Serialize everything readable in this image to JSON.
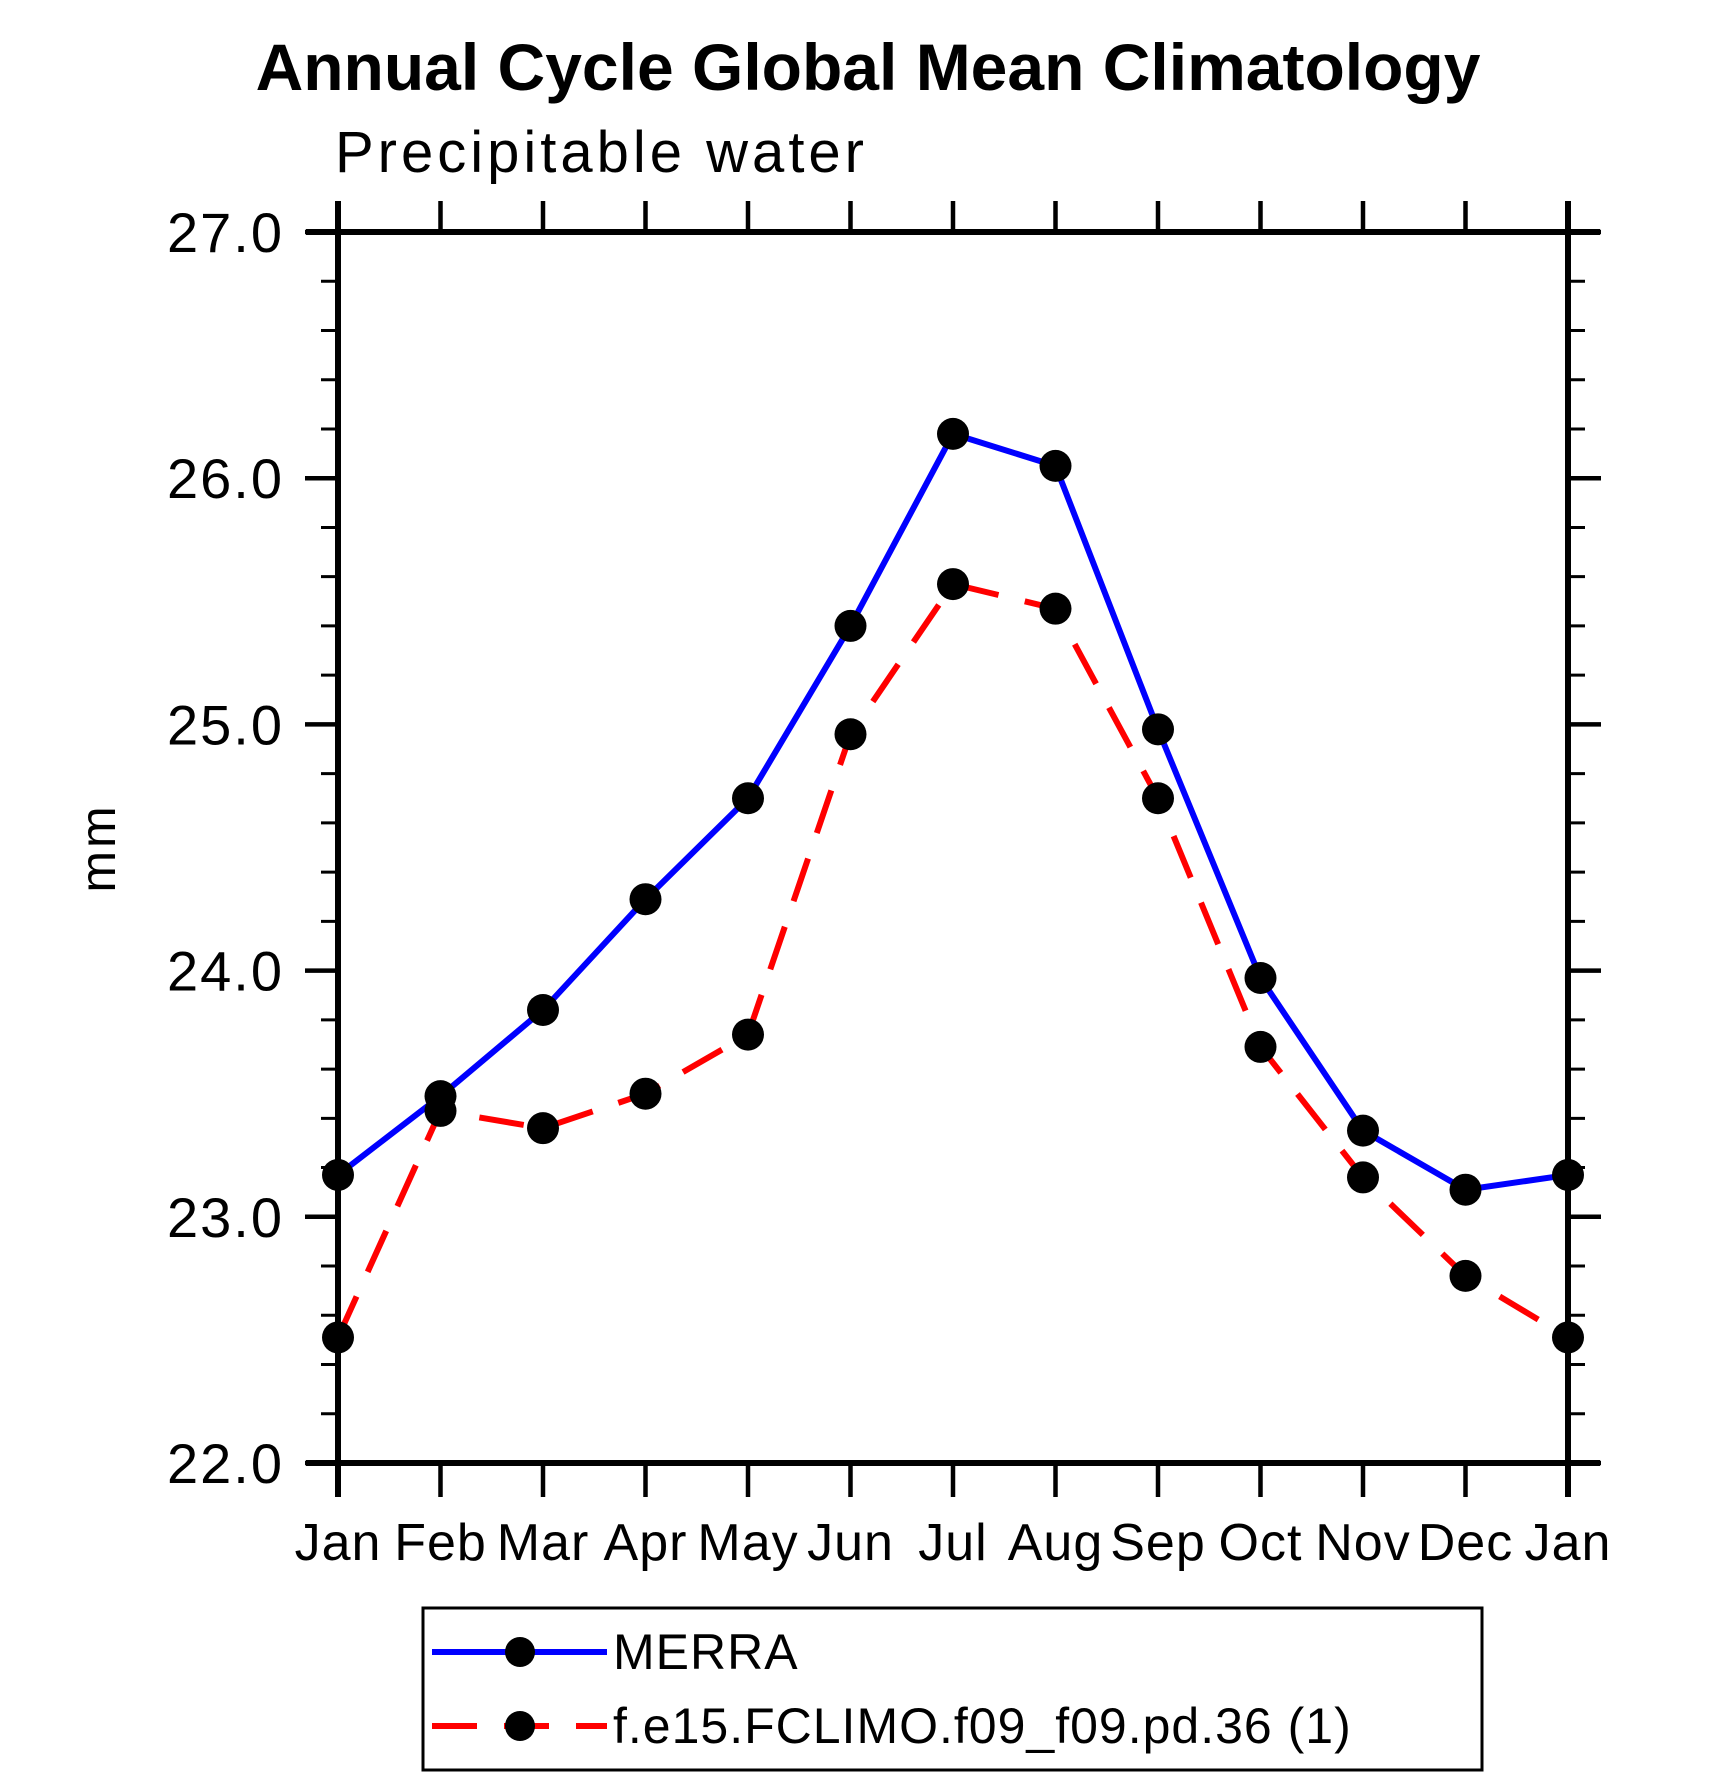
{
  "chart_data": {
    "type": "line",
    "title": "Annual Cycle Global Mean Climatology",
    "subtitle": "Precipitable water",
    "ylabel": "mm",
    "ylim": [
      22.0,
      27.0
    ],
    "ytick_labels": [
      "22.0",
      "23.0",
      "24.0",
      "25.0",
      "26.0",
      "27.0"
    ],
    "ytick_major_step": 1.0,
    "ytick_minor_step": 0.2,
    "x_categories": [
      "Jan",
      "Feb",
      "Mar",
      "Apr",
      "May",
      "Jun",
      "Jul",
      "Aug",
      "Sep",
      "Oct",
      "Nov",
      "Dec",
      "Jan"
    ],
    "grid": false,
    "legend_position": "bottom",
    "axis_color": "#000000",
    "marker_color": "#000000",
    "series": [
      {
        "name": "MERRA",
        "color": "#0000ff",
        "line_style": "solid",
        "marker": "circle",
        "values": [
          23.17,
          23.49,
          23.84,
          24.29,
          24.7,
          25.4,
          26.18,
          26.05,
          24.98,
          23.97,
          23.35,
          23.11,
          23.17
        ]
      },
      {
        "name": "f.e15.FCLIMO.f09_f09.pd.36 (1)",
        "color": "#ff0000",
        "line_style": "dashed",
        "marker": "circle",
        "values": [
          22.51,
          23.43,
          23.36,
          23.5,
          23.74,
          24.96,
          25.57,
          25.47,
          24.7,
          23.69,
          23.16,
          22.76,
          22.51
        ]
      }
    ]
  }
}
